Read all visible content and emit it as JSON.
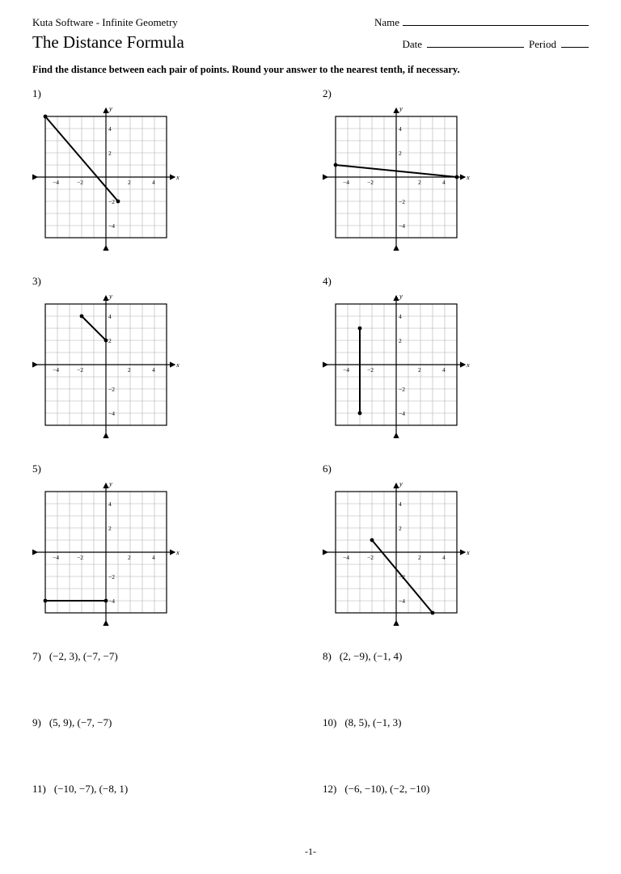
{
  "header": {
    "software": "Kuta Software - Infinite Geometry",
    "name_label": "Name",
    "date_label": "Date",
    "period_label": "Period"
  },
  "title": "The Distance Formula",
  "instructions": "Find the distance between each pair of points.  Round your answer to the nearest tenth, if necessary.",
  "grid": {
    "size": 150,
    "cell": 15,
    "xmin": -5,
    "xmax": 5,
    "ymin": -5,
    "ymax": 5,
    "xticks": [
      -4,
      -2,
      2,
      4
    ],
    "yticks": [
      -4,
      -2,
      2,
      4
    ],
    "xlabel": "x",
    "ylabel": "y",
    "grid_color": "#b0b0b0",
    "axis_color": "#000000",
    "line_color": "#000000",
    "point_radius": 2.4,
    "arrow_len": 10
  },
  "problems": [
    {
      "n": "1)",
      "type": "graph",
      "p1": [
        -5,
        5
      ],
      "p2": [
        1,
        -2
      ]
    },
    {
      "n": "2)",
      "type": "graph",
      "p1": [
        -5,
        1
      ],
      "p2": [
        5,
        0
      ]
    },
    {
      "n": "3)",
      "type": "graph",
      "p1": [
        -2,
        4
      ],
      "p2": [
        0,
        2
      ]
    },
    {
      "n": "4)",
      "type": "graph",
      "p1": [
        -3,
        3
      ],
      "p2": [
        -3,
        -4
      ]
    },
    {
      "n": "5)",
      "type": "graph",
      "p1": [
        -5,
        -4
      ],
      "p2": [
        0,
        -4
      ]
    },
    {
      "n": "6)",
      "type": "graph",
      "p1": [
        -2,
        1
      ],
      "p2": [
        3,
        -5
      ]
    },
    {
      "n": "7)",
      "type": "text",
      "points": "(−2, 3),  (−7, −7)"
    },
    {
      "n": "8)",
      "type": "text",
      "points": "(2, −9),  (−1, 4)"
    },
    {
      "n": "9)",
      "type": "text",
      "points": "(5, 9),  (−7, −7)"
    },
    {
      "n": "10)",
      "type": "text",
      "points": "(8, 5),  (−1, 3)"
    },
    {
      "n": "11)",
      "type": "text",
      "points": "(−10, −7),  (−8, 1)"
    },
    {
      "n": "12)",
      "type": "text",
      "points": "(−6, −10),  (−2, −10)"
    }
  ],
  "page_number": "-1-"
}
